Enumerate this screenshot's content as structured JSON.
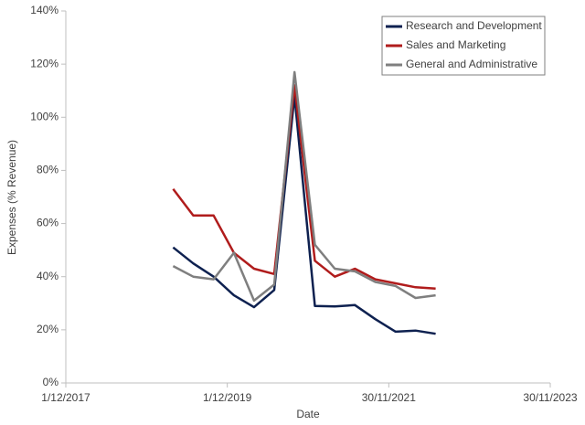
{
  "chart_data": {
    "type": "line",
    "x_label": "Date",
    "y_label": "Expenses (% Revenue)",
    "x": [
      "2019-03-31",
      "2019-06-30",
      "2019-09-30",
      "2019-12-31",
      "2020-03-31",
      "2020-06-30",
      "2020-09-30",
      "2020-12-31",
      "2021-03-31",
      "2021-06-30",
      "2021-09-30",
      "2021-12-31",
      "2022-03-31",
      "2022-06-30"
    ],
    "series": [
      {
        "name": "Research and Development",
        "color": "#0e2150",
        "values": [
          51,
          45,
          40,
          33,
          28.5,
          35,
          108,
          29,
          28.8,
          29.3,
          24,
          19.3,
          19.7,
          18.5
        ]
      },
      {
        "name": "Sales and Marketing",
        "color": "#b01c1c",
        "values": [
          73,
          63,
          63,
          49,
          43,
          41,
          112,
          46,
          40,
          43,
          39,
          37.5,
          36,
          35.5
        ]
      },
      {
        "name": "General and Administrative",
        "color": "#7f7f7f",
        "values": [
          44,
          40,
          39,
          49,
          31,
          37,
          117,
          52,
          43,
          42,
          38,
          36.5,
          32,
          33
        ]
      }
    ],
    "xlim": [
      "2017-12-01",
      "2023-11-30"
    ],
    "xticks": [
      {
        "value": "2017-12-01",
        "label": "1/12/2017"
      },
      {
        "value": "2019-12-01",
        "label": "1/12/2019"
      },
      {
        "value": "2021-11-30",
        "label": "30/11/2021"
      },
      {
        "value": "2023-11-30",
        "label": "30/11/2023"
      }
    ],
    "ylim": [
      0,
      140
    ],
    "yticks": [
      {
        "value": 0,
        "label": "0%"
      },
      {
        "value": 20,
        "label": "20%"
      },
      {
        "value": 40,
        "label": "40%"
      },
      {
        "value": 60,
        "label": "60%"
      },
      {
        "value": 80,
        "label": "80%"
      },
      {
        "value": 100,
        "label": "100%"
      },
      {
        "value": 120,
        "label": "120%"
      },
      {
        "value": 140,
        "label": "140%"
      }
    ],
    "legend": "top-right",
    "grid": false
  }
}
